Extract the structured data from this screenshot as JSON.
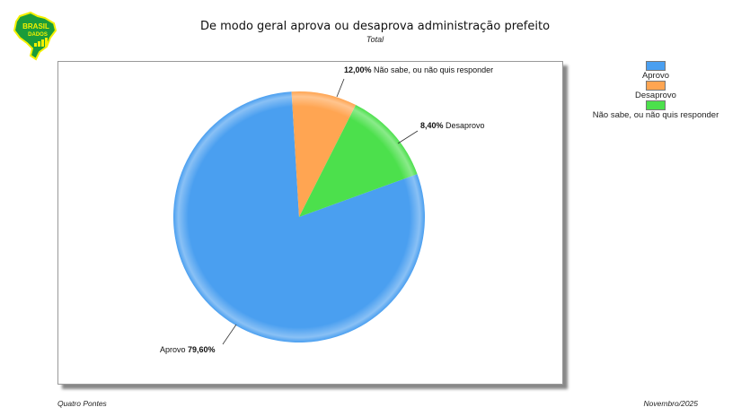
{
  "logo": {
    "line1": "BRASIL",
    "line2": "DADOS"
  },
  "chart_data": {
    "type": "pie",
    "title": "De modo geral aprova ou desaprova administração prefeito",
    "subtitle": "Total",
    "slices": [
      {
        "label": "Aprovo",
        "value": 79.6,
        "display": "79,60%",
        "color": "#4a9ff0"
      },
      {
        "label": "Desaprovo",
        "value": 8.4,
        "display": "8,40%",
        "color": "#ffa552"
      },
      {
        "label": "Não sabe, ou não quis responder",
        "value": 12.0,
        "display": "12,00%",
        "color": "#4ce04c"
      }
    ],
    "legend_position": "right"
  },
  "footer": {
    "left": "Quatro Pontes",
    "right": "Novembro/2025"
  }
}
